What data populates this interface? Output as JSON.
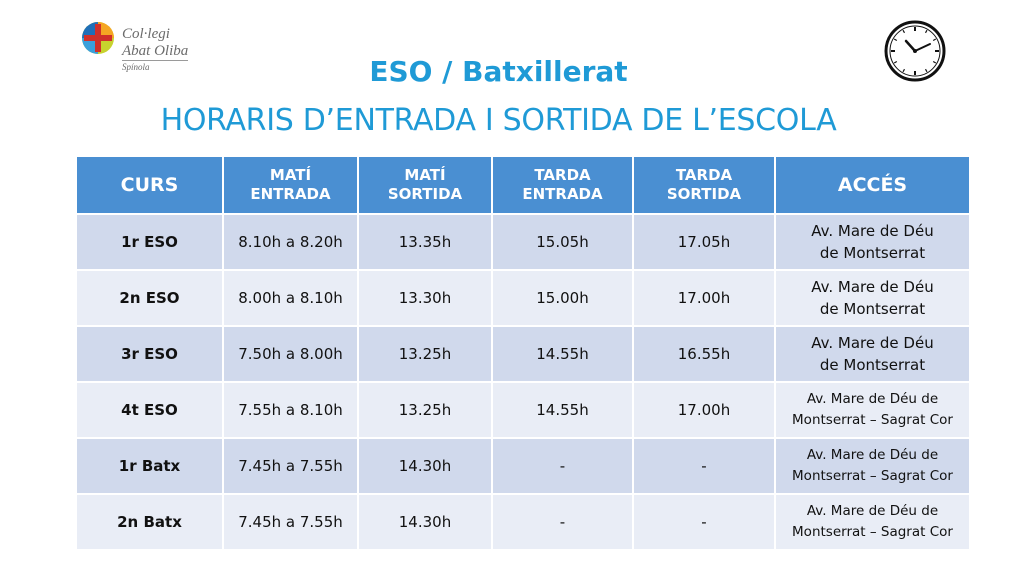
{
  "logo": {
    "line1": "Col·legi",
    "line2": "Abat Oliba",
    "line3": "Spínola"
  },
  "title": "ESO / Batxillerat",
  "subtitle": "HORARIS D’ENTRADA I SORTIDA DE L’ESCOLA",
  "colors": {
    "accent": "#1f9ad6",
    "header_bg": "#4a8fd2",
    "row_dark": "#d0d9ec",
    "row_light": "#e9edf6"
  },
  "table": {
    "headers": [
      {
        "l1": "CURS",
        "l2": ""
      },
      {
        "l1": "MATÍ",
        "l2": "ENTRADA"
      },
      {
        "l1": "MATÍ",
        "l2": "SORTIDA"
      },
      {
        "l1": "TARDA",
        "l2": "ENTRADA"
      },
      {
        "l1": "TARDA",
        "l2": "SORTIDA"
      },
      {
        "l1": "ACCÉS",
        "l2": ""
      }
    ],
    "rows": [
      {
        "curs": "1r ESO",
        "mati_entrada": "8.10h a 8.20h",
        "mati_sortida": "13.35h",
        "tarda_entrada": "15.05h",
        "tarda_sortida": "17.05h",
        "acces_l1": "Av. Mare de Déu",
        "acces_l2": "de Montserrat"
      },
      {
        "curs": "2n ESO",
        "mati_entrada": "8.00h a 8.10h",
        "mati_sortida": "13.30h",
        "tarda_entrada": "15.00h",
        "tarda_sortida": "17.00h",
        "acces_l1": "Av. Mare de Déu",
        "acces_l2": "de Montserrat"
      },
      {
        "curs": "3r ESO",
        "mati_entrada": "7.50h a 8.00h",
        "mati_sortida": "13.25h",
        "tarda_entrada": "14.55h",
        "tarda_sortida": "16.55h",
        "acces_l1": "Av. Mare de Déu",
        "acces_l2": "de Montserrat"
      },
      {
        "curs": "4t ESO",
        "mati_entrada": "7.55h a 8.10h",
        "mati_sortida": "13.25h",
        "tarda_entrada": "14.55h",
        "tarda_sortida": "17.00h",
        "acces_l1": "Av. Mare de Déu de",
        "acces_l2": "Montserrat – Sagrat Cor"
      },
      {
        "curs": "1r Batx",
        "mati_entrada": "7.45h a 7.55h",
        "mati_sortida": "14.30h",
        "tarda_entrada": "-",
        "tarda_sortida": "-",
        "acces_l1": "Av. Mare de Déu de",
        "acces_l2": "Montserrat – Sagrat Cor"
      },
      {
        "curs": "2n Batx",
        "mati_entrada": "7.45h a 7.55h",
        "mati_sortida": "14.30h",
        "tarda_entrada": "-",
        "tarda_sortida": "-",
        "acces_l1": "Av. Mare de Déu de",
        "acces_l2": "Montserrat – Sagrat Cor"
      }
    ]
  }
}
